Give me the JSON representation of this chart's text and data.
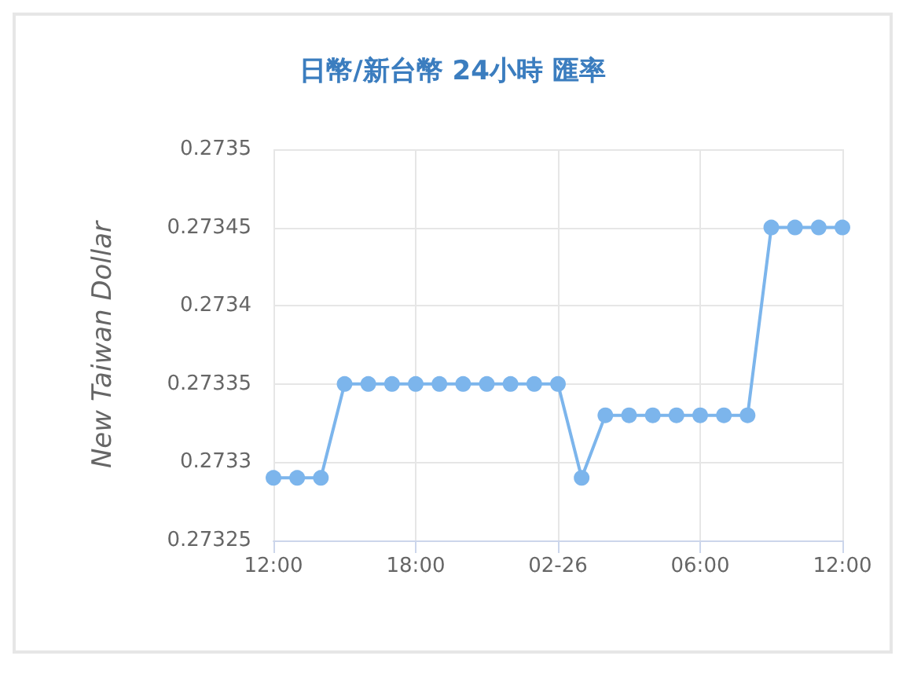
{
  "chart_data": {
    "type": "line",
    "title": "日幣/新台幣 24小時 匯率",
    "ylabel": "New Taiwan Dollar",
    "x": [
      "--02-25T12:00",
      "--02-25T13:00",
      "--02-25T14:00",
      "--02-25T15:00",
      "--02-25T16:00",
      "--02-25T17:00",
      "--02-25T18:00",
      "--02-25T19:00",
      "--02-25T20:00",
      "--02-25T21:00",
      "--02-25T22:00",
      "--02-25T23:00",
      "--02-26T00:00",
      "--02-26T01:00",
      "--02-26T02:00",
      "--02-26T03:00",
      "--02-26T04:00",
      "--02-26T05:00",
      "--02-26T06:00",
      "--02-26T07:00",
      "--02-26T08:00",
      "--02-26T09:00",
      "--02-26T10:00",
      "--02-26T11:00",
      "--02-26T12:00"
    ],
    "series": [
      {
        "color": "#7cb5ec",
        "values": [
          0.27329,
          0.27329,
          0.27329,
          0.27335,
          0.27335,
          0.27335,
          0.27335,
          0.27335,
          0.27335,
          0.27335,
          0.27335,
          0.27335,
          0.27335,
          0.27329,
          0.27333,
          0.27333,
          0.27333,
          0.27333,
          0.27333,
          0.27333,
          0.27333,
          0.27345,
          0.27345,
          0.27345,
          0.27345
        ]
      }
    ],
    "xlim": [
      "--02-25T12:00",
      "--02-26T12:00"
    ],
    "xticks": [
      {
        "value": "--02-25T12:00",
        "label": "12:00"
      },
      {
        "value": "--02-25T18:00",
        "label": "18:00"
      },
      {
        "value": "--02-26T00:00",
        "label": "02-26"
      },
      {
        "value": "--02-26T06:00",
        "label": "06:00"
      },
      {
        "value": "--02-26T12:00",
        "label": "12:00"
      }
    ],
    "ylim": [
      0.27325,
      0.2735
    ],
    "yticks": [
      0.27325,
      0.2733,
      0.27335,
      0.2734,
      0.27345,
      0.2735
    ],
    "grid": true,
    "marker": "circle",
    "line_style": "solid"
  }
}
